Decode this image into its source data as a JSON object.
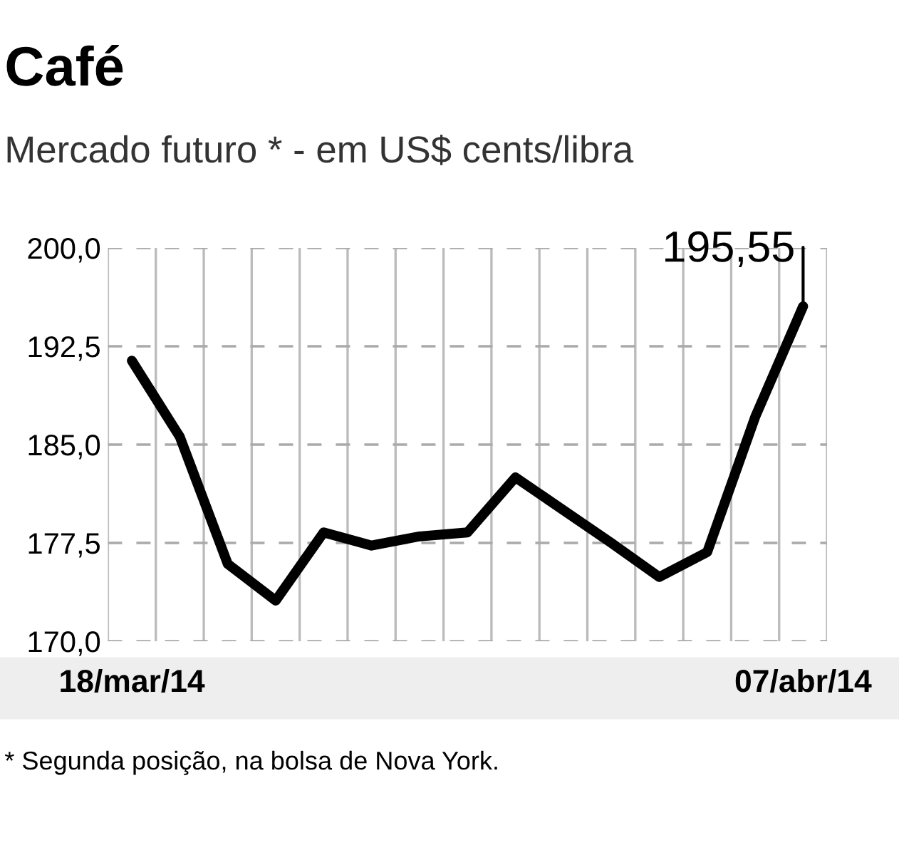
{
  "chart_data": {
    "type": "line",
    "title": "Café",
    "subtitle": "Mercado futuro * - em US$ cents/libra",
    "categories": [
      "18/mar/14",
      null,
      null,
      null,
      null,
      null,
      null,
      null,
      null,
      null,
      null,
      null,
      null,
      null,
      "07/abr/14"
    ],
    "series": [
      {
        "color": "#000000",
        "values": [
          191.4,
          185.6,
          175.9,
          173.1,
          178.3,
          177.3,
          178.0,
          178.3,
          182.5,
          180.0,
          177.5,
          174.9,
          176.8,
          187.1,
          195.55
        ],
        "value_labels": [
          null,
          null,
          null,
          null,
          null,
          null,
          null,
          null,
          null,
          null,
          null,
          null,
          null,
          null,
          "195,55"
        ]
      }
    ],
    "ylim": [
      170,
      200
    ],
    "yticks": [
      {
        "value": 170,
        "label": "170,0"
      },
      {
        "value": 177.5,
        "label": "177,5"
      },
      {
        "value": 185,
        "label": "185,0"
      },
      {
        "value": 192.5,
        "label": "192,5"
      },
      {
        "value": 200,
        "label": "200,0"
      }
    ],
    "grid": true,
    "marker": "none",
    "line_style": "solid",
    "annotations": [
      "* Segunda posição, na bolsa de Nova York."
    ]
  }
}
